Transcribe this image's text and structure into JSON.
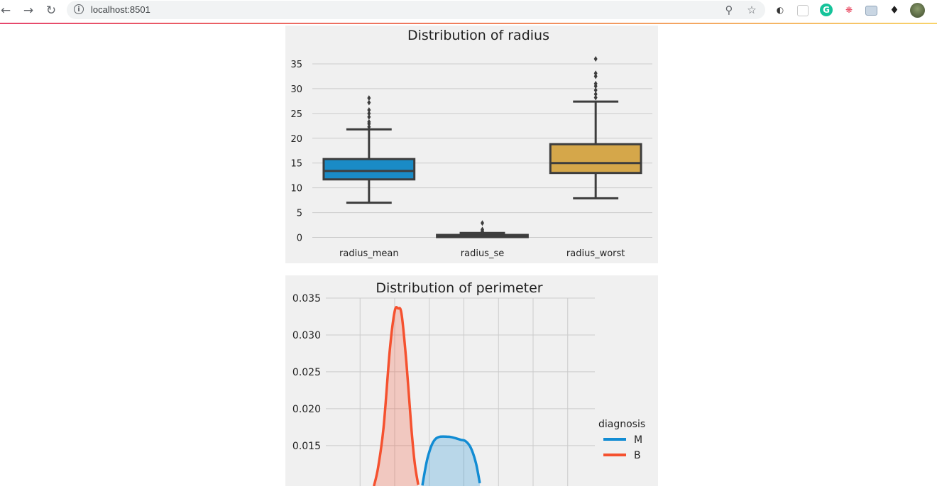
{
  "browser": {
    "url": "localhost:8501",
    "info_glyph": "i"
  },
  "colors": {
    "accent_gradient": [
      "#e6466d",
      "#f07f5b",
      "#f8d36a"
    ],
    "radius_mean": "#1a8bc6",
    "radius_se": "#ea5538",
    "radius_worst": "#d5a74a",
    "M": "#128cd3",
    "B": "#f5512f"
  },
  "chart_data": [
    {
      "type": "box",
      "title": "Distribution of radius",
      "xlabel": "",
      "ylabel": "",
      "ylim": [
        -1.5,
        37
      ],
      "yticks": [
        0,
        5,
        10,
        15,
        20,
        25,
        30,
        35
      ],
      "grid": true,
      "categories": [
        "radius_mean",
        "radius_se",
        "radius_worst"
      ],
      "boxes": [
        {
          "name": "radius_mean",
          "whisker_low": 7.0,
          "q1": 11.7,
          "median": 13.4,
          "q3": 15.8,
          "whisker_high": 21.8,
          "outliers": [
            22.3,
            22.9,
            23.3,
            24.3,
            25.0,
            25.7,
            27.2,
            28.1
          ]
        },
        {
          "name": "radius_se",
          "whisker_low": 0.1,
          "q1": 0.2,
          "median": 0.35,
          "q3": 0.5,
          "whisker_high": 0.9,
          "outliers": [
            1.1,
            1.3,
            1.6,
            2.9
          ]
        },
        {
          "name": "radius_worst",
          "whisker_low": 7.9,
          "q1": 13.0,
          "median": 15.0,
          "q3": 18.8,
          "whisker_high": 27.4,
          "outliers": [
            28.2,
            28.9,
            29.7,
            30.5,
            31.0,
            32.5,
            33.1,
            36.0
          ]
        }
      ]
    },
    {
      "type": "area",
      "title": "Distribution of perimeter",
      "xlabel": "",
      "ylabel": "",
      "ylim": [
        0.0095,
        0.035
      ],
      "yticks": [
        0.015,
        0.02,
        0.025,
        0.03,
        0.035
      ],
      "ytick_labels": [
        "0.015",
        "0.020",
        "0.025",
        "0.030",
        "0.035"
      ],
      "grid": true,
      "legend": {
        "title": "diagnosis",
        "placement": "right",
        "entries": [
          "M",
          "B"
        ]
      },
      "series": [
        {
          "name": "M",
          "points": [
            [
              0.8,
              0.0096
            ],
            [
              0.96,
              0.0135
            ],
            [
              1.18,
              0.0159
            ],
            [
              1.55,
              0.0162
            ],
            [
              1.9,
              0.0158
            ],
            [
              2.05,
              0.0156
            ],
            [
              2.2,
              0.0147
            ],
            [
              2.35,
              0.0126
            ],
            [
              2.46,
              0.0099
            ]
          ]
        },
        {
          "name": "B",
          "points": [
            [
              -0.6,
              0.0095
            ],
            [
              -0.48,
              0.012
            ],
            [
              -0.32,
              0.0175
            ],
            [
              -0.14,
              0.028
            ],
            [
              0,
              0.0332
            ],
            [
              0.1,
              0.0336
            ],
            [
              0.2,
              0.0328
            ],
            [
              0.34,
              0.0262
            ],
            [
              0.48,
              0.0175
            ],
            [
              0.58,
              0.0126
            ],
            [
              0.68,
              0.0097
            ]
          ]
        }
      ],
      "x_gridlines": [
        -1,
        0,
        1,
        2,
        3,
        4,
        5
      ]
    }
  ]
}
